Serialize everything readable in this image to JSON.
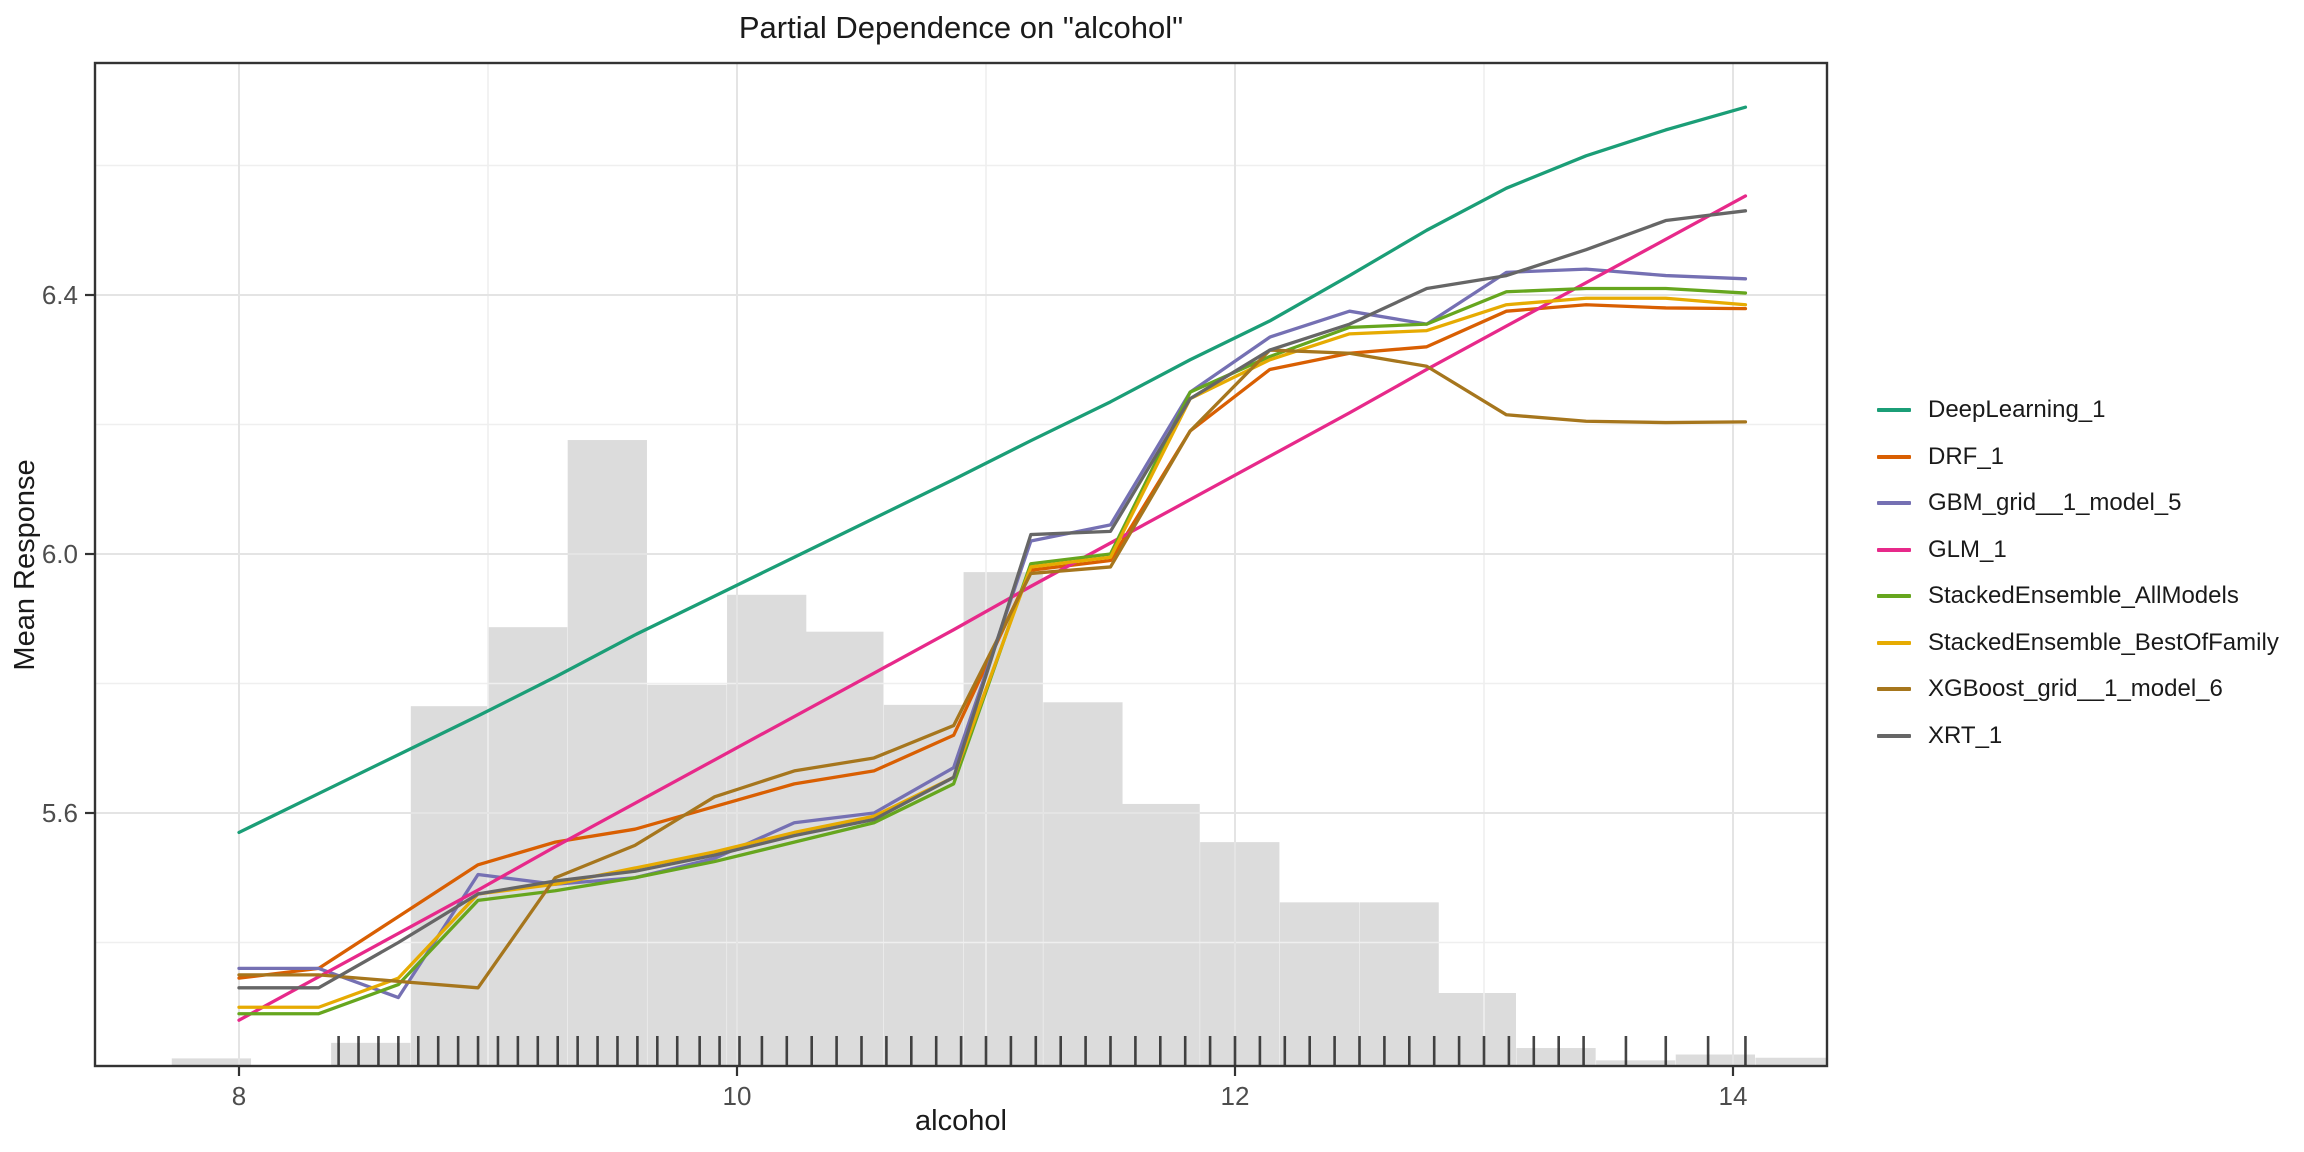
{
  "title": "Partial Dependence on \"alcohol\"",
  "colors": {
    "background": "#ffffff",
    "panel_border": "#333333",
    "grid_major": "#e4e4e4",
    "grid_minor": "#efefef",
    "histogram_fill": "#dcdcdc",
    "rug": "#2b2b2b",
    "tick_mark": "#333333",
    "tick_label": "#4d4d4d",
    "text": "#1a1a1a"
  },
  "x_axis": {
    "label": "alcohol",
    "tick_labels": [
      "8",
      "10",
      "12",
      "14"
    ],
    "tick_values": [
      8,
      10,
      12,
      14
    ],
    "minor_gridlines": [
      9,
      11,
      13
    ],
    "range": [
      7.42,
      14.38
    ]
  },
  "y_axis": {
    "label": "Mean Response",
    "tick_labels": [
      "5.6",
      "6.0",
      "6.4"
    ],
    "tick_values": [
      5.6,
      6.0,
      6.4
    ],
    "minor_gridlines": [
      5.4,
      5.8,
      6.2,
      6.6
    ],
    "range": [
      5.209,
      6.758
    ]
  },
  "legend": {
    "position": "right-center",
    "items": [
      {
        "label": "DeepLearning_1",
        "color": "#1b9e77"
      },
      {
        "label": "DRF_1",
        "color": "#d95f02"
      },
      {
        "label": "GBM_grid__1_model_5",
        "color": "#7570b3"
      },
      {
        "label": "GLM_1",
        "color": "#e7298a"
      },
      {
        "label": "StackedEnsemble_AllModels",
        "color": "#66a61e"
      },
      {
        "label": "StackedEnsemble_BestOfFamily",
        "color": "#e6ab02"
      },
      {
        "label": "XGBoost_grid__1_model_6",
        "color": "#a6761d"
      },
      {
        "label": "XRT_1",
        "color": "#666666"
      }
    ]
  },
  "chart_data": {
    "type": "line",
    "title": "Partial Dependence on \"alcohol\"",
    "xlabel": "alcohol",
    "ylabel": "Mean Response",
    "xlim": [
      7.42,
      14.38
    ],
    "ylim": [
      5.209,
      6.758
    ],
    "grid": "major+minor light gray on white panel, dark panel border",
    "legend_position": "right",
    "x": [
      8.0,
      8.32,
      8.64,
      8.96,
      9.27,
      9.59,
      9.91,
      10.23,
      10.55,
      10.87,
      11.18,
      11.5,
      11.82,
      12.14,
      12.46,
      12.77,
      13.09,
      13.41,
      13.73,
      14.05
    ],
    "series": [
      {
        "name": "DeepLearning_1",
        "color": "#1b9e77",
        "values": [
          5.57,
          5.63,
          5.69,
          5.75,
          5.81,
          5.875,
          5.935,
          5.995,
          6.055,
          6.115,
          6.175,
          6.235,
          6.3,
          6.36,
          6.43,
          6.5,
          6.565,
          6.615,
          6.655,
          6.69
        ]
      },
      {
        "name": "DRF_1",
        "color": "#d95f02",
        "values": [
          5.345,
          5.36,
          5.44,
          5.52,
          5.555,
          5.575,
          5.61,
          5.645,
          5.665,
          5.72,
          5.975,
          5.99,
          6.19,
          6.285,
          6.31,
          6.32,
          6.375,
          6.385,
          6.38,
          6.379
        ]
      },
      {
        "name": "GBM_grid__1_model_5",
        "color": "#7570b3",
        "values": [
          5.36,
          5.36,
          5.315,
          5.505,
          5.49,
          5.5,
          5.53,
          5.585,
          5.6,
          5.67,
          6.02,
          6.045,
          6.25,
          6.335,
          6.375,
          6.355,
          6.435,
          6.44,
          6.43,
          6.425
        ]
      },
      {
        "name": "GLM_1",
        "color": "#e7298a",
        "values": [
          5.28,
          5.347,
          5.414,
          5.481,
          5.548,
          5.615,
          5.682,
          5.749,
          5.816,
          5.883,
          5.95,
          6.017,
          6.084,
          6.151,
          6.218,
          6.285,
          6.352,
          6.419,
          6.486,
          6.553
        ]
      },
      {
        "name": "StackedEnsemble_AllModels",
        "color": "#66a61e",
        "values": [
          5.29,
          5.29,
          5.335,
          5.465,
          5.48,
          5.5,
          5.525,
          5.555,
          5.585,
          5.645,
          5.985,
          6.0,
          6.25,
          6.305,
          6.35,
          6.355,
          6.405,
          6.41,
          6.41,
          6.403
        ]
      },
      {
        "name": "StackedEnsemble_BestOfFamily",
        "color": "#e6ab02",
        "values": [
          5.3,
          5.3,
          5.345,
          5.475,
          5.49,
          5.515,
          5.54,
          5.57,
          5.595,
          5.655,
          5.98,
          5.995,
          6.24,
          6.3,
          6.34,
          6.345,
          6.385,
          6.395,
          6.395,
          6.385
        ]
      },
      {
        "name": "XGBoost_grid__1_model_6",
        "color": "#a6761d",
        "values": [
          5.35,
          5.35,
          5.34,
          5.33,
          5.5,
          5.55,
          5.625,
          5.665,
          5.685,
          5.735,
          5.97,
          5.98,
          6.19,
          6.315,
          6.31,
          6.29,
          6.215,
          6.205,
          6.203,
          6.204
        ]
      },
      {
        "name": "XRT_1",
        "color": "#666666",
        "values": [
          5.33,
          5.33,
          5.4,
          5.475,
          5.495,
          5.51,
          5.535,
          5.565,
          5.59,
          5.655,
          6.03,
          6.035,
          6.24,
          6.315,
          6.355,
          6.41,
          6.43,
          6.47,
          6.515,
          6.53
        ]
      }
    ],
    "histogram": {
      "bin_width": 0.3184,
      "baseline": 5.209,
      "bars": [
        {
          "x": 7.73,
          "top": 5.221
        },
        {
          "x": 8.37,
          "top": 5.245
        },
        {
          "x": 8.69,
          "top": 5.765
        },
        {
          "x": 9.0,
          "top": 5.887
        },
        {
          "x": 9.32,
          "top": 6.176
        },
        {
          "x": 9.64,
          "top": 5.798
        },
        {
          "x": 9.96,
          "top": 5.937
        },
        {
          "x": 10.27,
          "top": 5.88
        },
        {
          "x": 10.59,
          "top": 5.767
        },
        {
          "x": 10.91,
          "top": 5.972
        },
        {
          "x": 11.23,
          "top": 5.771
        },
        {
          "x": 11.54,
          "top": 5.614
        },
        {
          "x": 11.86,
          "top": 5.555
        },
        {
          "x": 12.18,
          "top": 5.462
        },
        {
          "x": 12.5,
          "top": 5.462
        },
        {
          "x": 12.81,
          "top": 5.322
        },
        {
          "x": 13.13,
          "top": 5.237
        },
        {
          "x": 13.45,
          "top": 5.218
        },
        {
          "x": 13.77,
          "top": 5.227
        },
        {
          "x": 14.09,
          "top": 5.222
        }
      ]
    },
    "rug_x": [
      8.4,
      8.48,
      8.56,
      8.64,
      8.72,
      8.8,
      8.88,
      8.96,
      9.04,
      9.12,
      9.2,
      9.28,
      9.36,
      9.44,
      9.52,
      9.6,
      9.68,
      9.76,
      9.85,
      9.93,
      10.01,
      10.1,
      10.2,
      10.3,
      10.4,
      10.5,
      10.6,
      10.7,
      10.8,
      10.9,
      11.0,
      11.1,
      11.2,
      11.3,
      11.4,
      11.5,
      11.6,
      11.7,
      11.8,
      11.9,
      12.0,
      12.1,
      12.2,
      12.3,
      12.4,
      12.5,
      12.6,
      12.7,
      12.8,
      12.9,
      13.0,
      13.1,
      13.2,
      13.3,
      13.4,
      13.57,
      13.73,
      13.9,
      14.05
    ]
  }
}
